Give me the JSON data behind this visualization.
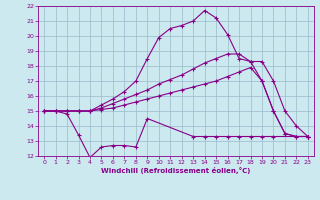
{
  "xlabel": "Windchill (Refroidissement éolien,°C)",
  "xlim": [
    -0.5,
    23.5
  ],
  "ylim": [
    12,
    22
  ],
  "xticks": [
    0,
    1,
    2,
    3,
    4,
    5,
    6,
    7,
    8,
    9,
    10,
    11,
    12,
    13,
    14,
    15,
    16,
    17,
    18,
    19,
    20,
    21,
    22,
    23
  ],
  "yticks": [
    12,
    13,
    14,
    15,
    16,
    17,
    18,
    19,
    20,
    21,
    22
  ],
  "bg_color": "#cce9f0",
  "line_color": "#880088",
  "grid_color": "#99bbcc",
  "line0_x": [
    0,
    1,
    2,
    3,
    4,
    5,
    6,
    7,
    8,
    9,
    13,
    14,
    15,
    16,
    17,
    18,
    19,
    20,
    23
  ],
  "line0_y": [
    15.0,
    15.0,
    14.8,
    13.4,
    11.9,
    12.6,
    12.7,
    12.7,
    12.6,
    14.5,
    13.3,
    13.3,
    13.3,
    13.3,
    13.3,
    13.3,
    13.3,
    13.3,
    13.3
  ],
  "line1_x": [
    0,
    1,
    2,
    3,
    4,
    5,
    6,
    7,
    8,
    9,
    10,
    11,
    12,
    13,
    14,
    15,
    16,
    17,
    18,
    19,
    20,
    21,
    22,
    23
  ],
  "line1_y": [
    15.0,
    15.0,
    15.0,
    15.0,
    15.0,
    15.1,
    15.2,
    15.4,
    15.6,
    15.8,
    16.0,
    16.2,
    16.4,
    16.6,
    16.8,
    17.0,
    17.3,
    17.6,
    17.9,
    17.0,
    15.0,
    13.5,
    13.3,
    13.3
  ],
  "line2_x": [
    0,
    1,
    2,
    3,
    4,
    5,
    6,
    7,
    8,
    9,
    10,
    11,
    12,
    13,
    14,
    15,
    16,
    17,
    18,
    19,
    20,
    21,
    22,
    23
  ],
  "line2_y": [
    15.0,
    15.0,
    15.0,
    15.0,
    15.0,
    15.2,
    15.5,
    15.8,
    16.1,
    16.4,
    16.8,
    17.1,
    17.4,
    17.8,
    18.2,
    18.5,
    18.8,
    18.8,
    18.3,
    17.0,
    15.0,
    13.5,
    13.3,
    13.3
  ],
  "line3_x": [
    0,
    1,
    2,
    3,
    4,
    5,
    6,
    7,
    8,
    9,
    10,
    11,
    12,
    13,
    14,
    15,
    16,
    17,
    18,
    19,
    20,
    21,
    22,
    23
  ],
  "line3_y": [
    15.0,
    15.0,
    15.0,
    15.0,
    15.0,
    15.4,
    15.8,
    16.3,
    17.0,
    18.5,
    19.9,
    20.5,
    20.7,
    21.0,
    21.7,
    21.2,
    20.1,
    18.5,
    18.3,
    18.3,
    17.0,
    15.0,
    14.0,
    13.3
  ]
}
